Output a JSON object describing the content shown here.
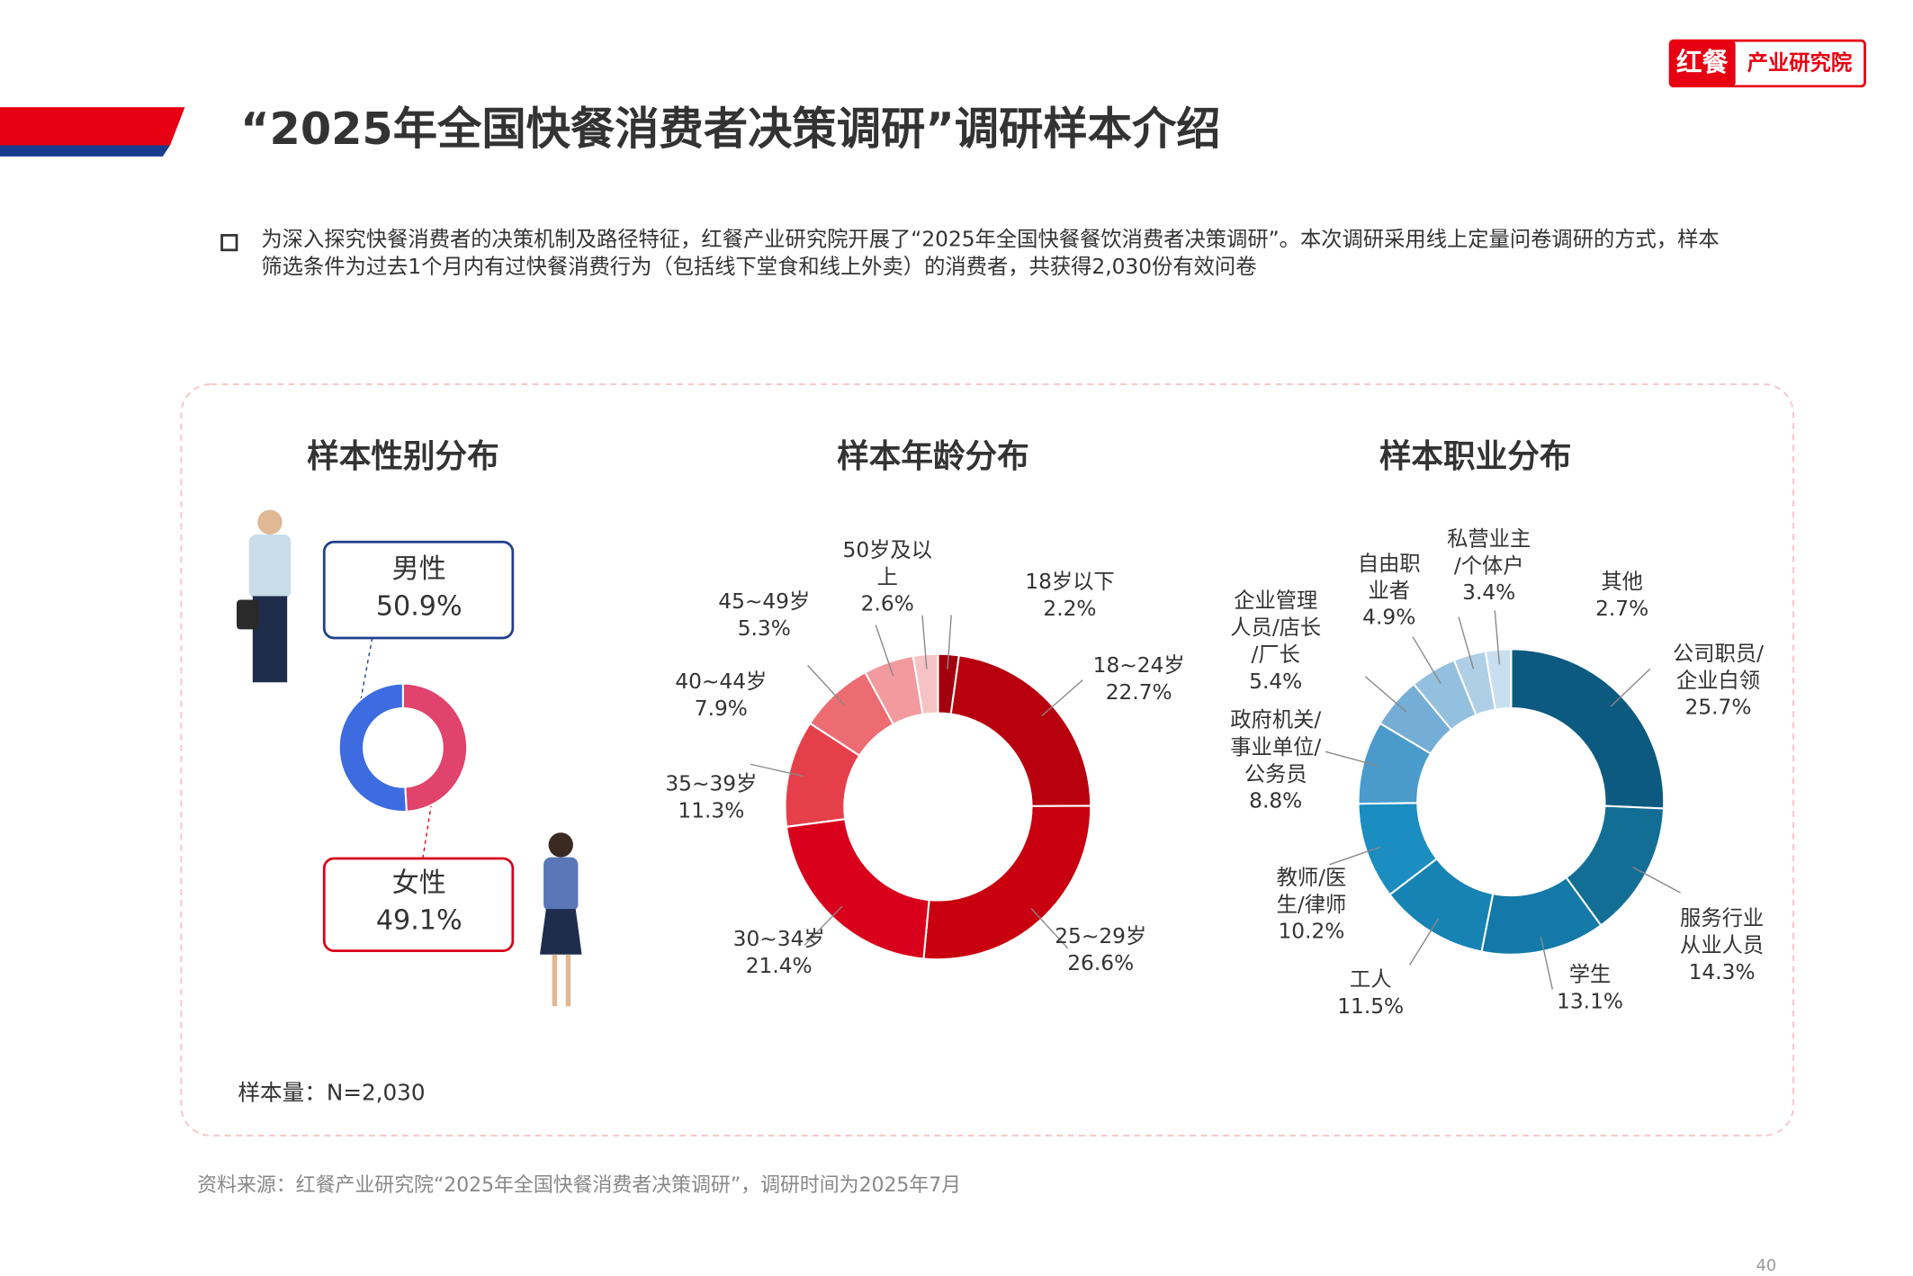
{
  "header": {
    "title": "“2025年全国快餐消费者决策调研”调研样本介绍",
    "brand_mark": "红餐",
    "brand_name": "产业研究院"
  },
  "intro": "为深入探究快餐消费者的决策机制及路径特征，红餐产业研究院开展了“2025年全国快餐餐饮消费者决策调研”。本次调研采用线上定量问卷调研的方式，样本筛选条件为过去1个月内有过快餐消费行为（包括线下堂食和线上外卖）的消费者，共获得2,030份有效问卷",
  "chart_data": [
    {
      "type": "donut",
      "title": "样本性别分布",
      "categories": [
        "男性",
        "女性"
      ],
      "values": [
        50.9,
        49.1
      ],
      "value_labels": [
        "50.9%",
        "49.1%"
      ],
      "colors": [
        "#3d6be0",
        "#e0436b"
      ]
    },
    {
      "type": "donut",
      "title": "样本年龄分布",
      "categories": [
        "18岁以下",
        "18~24岁",
        "25~29岁",
        "30~34岁",
        "35~39岁",
        "40~44岁",
        "45~49岁",
        "50岁及以上"
      ],
      "values": [
        2.2,
        22.7,
        26.6,
        21.4,
        11.3,
        7.9,
        5.3,
        2.6
      ],
      "value_labels": [
        "2.2%",
        "22.7%",
        "26.6%",
        "21.4%",
        "11.3%",
        "7.9%",
        "5.3%",
        "2.6%"
      ],
      "colors": [
        "#a3000f",
        "#b8000f",
        "#c8000f",
        "#d9001b",
        "#e5404a",
        "#ec6c72",
        "#f29a9e",
        "#f6c3c5"
      ]
    },
    {
      "type": "donut",
      "title": "样本职业分布",
      "categories": [
        "公司职员/企业白领",
        "服务行业从业人员",
        "学生",
        "工人",
        "教师/医生/律师",
        "政府机关/事业单位/公务员",
        "企业管理人员/店长/厂长",
        "自由职业者",
        "私营业主/个体户",
        "其他"
      ],
      "values": [
        25.7,
        14.3,
        13.1,
        11.5,
        10.2,
        8.8,
        5.4,
        4.9,
        3.4,
        2.7
      ],
      "value_labels": [
        "25.7%",
        "14.3%",
        "13.1%",
        "11.5%",
        "10.2%",
        "8.8%",
        "5.4%",
        "4.9%",
        "3.4%",
        "2.7%"
      ],
      "colors": [
        "#0d5a80",
        "#136e96",
        "#1479a8",
        "#1683b4",
        "#1b8dc0",
        "#4a9bcb",
        "#74aed6",
        "#93c0de",
        "#aecfe6",
        "#c9dff0"
      ]
    }
  ],
  "note": "样本量：N=2,030",
  "source": "资料来源：红餐产业研究院“2025年全国快餐消费者决策调研”，调研时间为2025年7月",
  "page_number": "40"
}
